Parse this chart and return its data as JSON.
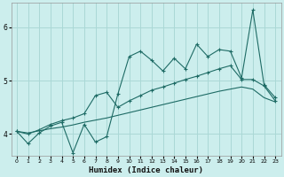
{
  "xlabel": "Humidex (Indice chaleur)",
  "background_color": "#cceeed",
  "grid_color": "#aad8d6",
  "line_color": "#1e6b65",
  "xlim": [
    -0.5,
    23.5
  ],
  "ylim": [
    3.6,
    6.45
  ],
  "yticks": [
    4,
    5,
    6
  ],
  "xticks": [
    0,
    1,
    2,
    3,
    4,
    5,
    6,
    7,
    8,
    9,
    10,
    11,
    12,
    13,
    14,
    15,
    16,
    17,
    18,
    19,
    20,
    21,
    22,
    23
  ],
  "line1_x": [
    0,
    1,
    2,
    3,
    4,
    5,
    6,
    7,
    8,
    9,
    10,
    11,
    12,
    13,
    14,
    15,
    16,
    17,
    18,
    19,
    20,
    21,
    22,
    23
  ],
  "line1_y": [
    4.05,
    3.82,
    4.02,
    4.15,
    4.22,
    3.65,
    4.18,
    3.85,
    3.95,
    4.75,
    5.45,
    5.55,
    5.38,
    5.18,
    5.42,
    5.22,
    5.68,
    5.45,
    5.58,
    5.55,
    5.05,
    6.32,
    4.92,
    4.68
  ],
  "line2_x": [
    0,
    1,
    2,
    3,
    4,
    5,
    6,
    7,
    8,
    9,
    10,
    11,
    12,
    13,
    14,
    15,
    16,
    17,
    18,
    19,
    20,
    21,
    22,
    23
  ],
  "line2_y": [
    4.05,
    4.0,
    4.08,
    4.18,
    4.25,
    4.3,
    4.38,
    4.72,
    4.78,
    4.5,
    4.62,
    4.72,
    4.82,
    4.88,
    4.95,
    5.02,
    5.08,
    5.15,
    5.22,
    5.28,
    5.02,
    5.02,
    4.9,
    4.62
  ],
  "line3_x": [
    0,
    1,
    2,
    3,
    4,
    5,
    6,
    7,
    8,
    9,
    10,
    11,
    12,
    13,
    14,
    15,
    16,
    17,
    18,
    19,
    20,
    21,
    22,
    23
  ],
  "line3_y": [
    4.05,
    4.02,
    4.06,
    4.1,
    4.13,
    4.17,
    4.22,
    4.26,
    4.3,
    4.35,
    4.4,
    4.45,
    4.5,
    4.55,
    4.6,
    4.65,
    4.7,
    4.75,
    4.8,
    4.84,
    4.88,
    4.84,
    4.68,
    4.6
  ]
}
